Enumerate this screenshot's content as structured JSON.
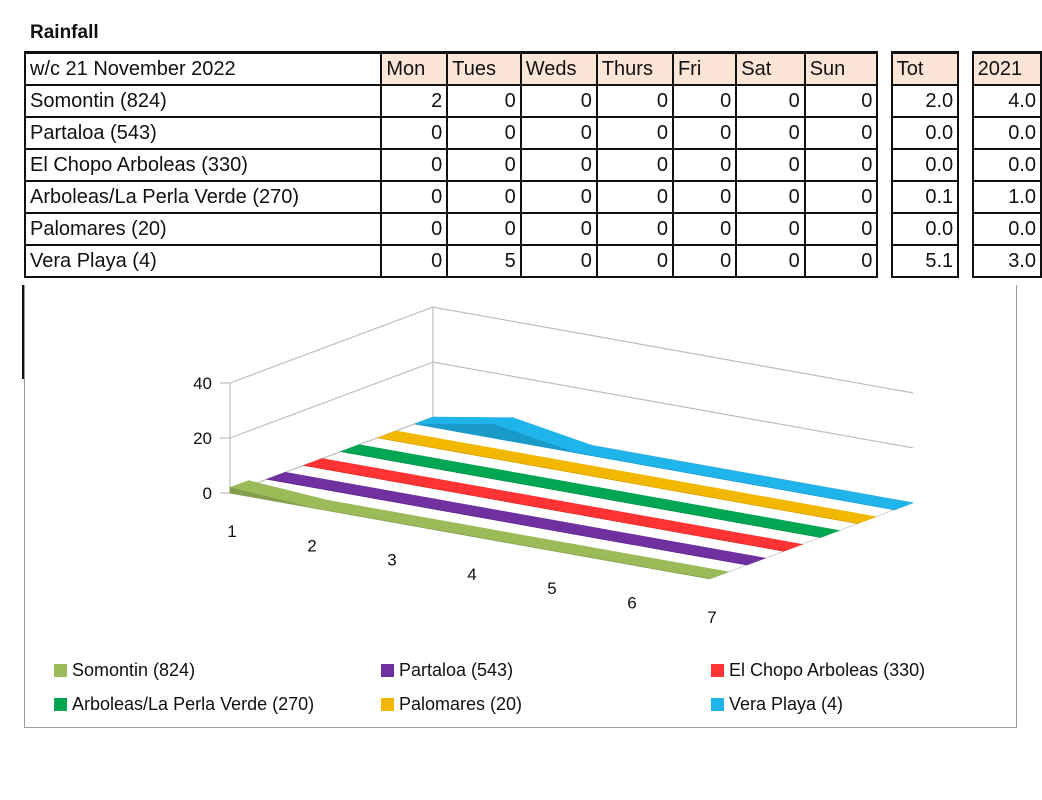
{
  "title": "Rainfall",
  "table": {
    "week_label": "w/c  21 November 2022",
    "days": [
      "Mon",
      "Tues",
      "Weds",
      "Thurs",
      "Fri",
      "Sat",
      "Sun"
    ],
    "total_label": "Tot",
    "prev_year_label": "2021",
    "rows": [
      {
        "name": "Somontin (824)",
        "days": [
          "2",
          "0",
          "0",
          "0",
          "0",
          "0",
          "0"
        ],
        "tot": "2.0",
        "prev": "4.0"
      },
      {
        "name": "Partaloa (543)",
        "days": [
          "0",
          "0",
          "0",
          "0",
          "0",
          "0",
          "0"
        ],
        "tot": "0.0",
        "prev": "0.0"
      },
      {
        "name": "El Chopo Arboleas (330)",
        "days": [
          "0",
          "0",
          "0",
          "0",
          "0",
          "0",
          "0"
        ],
        "tot": "0.0",
        "prev": "0.0"
      },
      {
        "name": "Arboleas/La Perla Verde (270)",
        "days": [
          "0",
          "0",
          "0",
          "0",
          "0",
          "0",
          "0"
        ],
        "tot": "0.1",
        "prev": "1.0"
      },
      {
        "name": "Palomares (20)",
        "days": [
          "0",
          "0",
          "0",
          "0",
          "0",
          "0",
          "0"
        ],
        "tot": "0.0",
        "prev": "0.0"
      },
      {
        "name": "Vera Playa (4)",
        "days": [
          "0",
          "5",
          "0",
          "0",
          "0",
          "0",
          "0"
        ],
        "tot": "5.1",
        "prev": "3.0"
      }
    ]
  },
  "chart_data": {
    "type": "area",
    "x": [
      1,
      2,
      3,
      4,
      5,
      6,
      7
    ],
    "x_tick_labels": [
      "1",
      "2",
      "3",
      "4",
      "5",
      "6",
      "7"
    ],
    "y_tick_labels": [
      "0",
      "20",
      "40"
    ],
    "ylim": [
      0,
      40
    ],
    "grid": true,
    "legend_position": "bottom",
    "three_d": true,
    "series": [
      {
        "name": "Somontin (824)",
        "values": [
          2,
          0,
          0,
          0,
          0,
          0,
          0
        ],
        "color": "#9bbb59"
      },
      {
        "name": "Partaloa (543)",
        "values": [
          0,
          0,
          0,
          0,
          0,
          0,
          0
        ],
        "color": "#7030a0"
      },
      {
        "name": "El Chopo Arboleas (330)",
        "values": [
          0,
          0,
          0,
          0,
          0,
          0,
          0
        ],
        "color": "#ff3333"
      },
      {
        "name": "Arboleas/La Perla Verde (270)",
        "values": [
          0,
          0,
          0,
          0,
          0,
          0,
          0
        ],
        "color": "#00a651"
      },
      {
        "name": "Palomares (20)",
        "values": [
          0,
          0,
          0,
          0,
          0,
          0,
          0
        ],
        "color": "#f2b800"
      },
      {
        "name": "Vera Playa (4)",
        "values": [
          0,
          5,
          0,
          0,
          0,
          0,
          0
        ],
        "color": "#1fb5ea"
      }
    ]
  }
}
